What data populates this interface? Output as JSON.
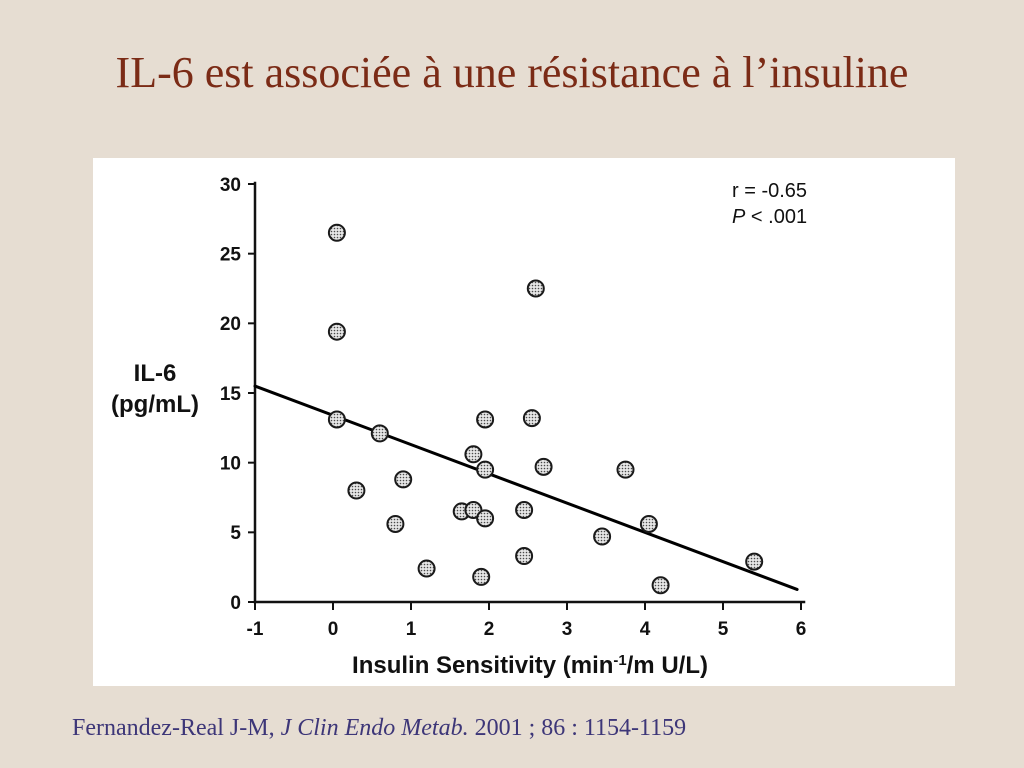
{
  "slide": {
    "title": "IL-6 est associée à une résistance à l’insuline",
    "citation": {
      "authors": "Fernandez-Real J-M,",
      "journal": "J Clin Endo Metab.",
      "details": "2001 ; 86 : 1154-1159"
    },
    "colors": {
      "background": "#e6ddd2",
      "title": "#7b2b16",
      "citation": "#3d3678",
      "panel": "#ffffff"
    }
  },
  "chart_data": {
    "type": "scatter",
    "ylabel": [
      "IL-6",
      "(pg/mL)"
    ],
    "xlabel": {
      "text": "Insulin Sensitivity (min",
      "sup": "-1",
      "tail": "/m U/L)"
    },
    "xlim": [
      -1,
      6
    ],
    "ylim": [
      0,
      30
    ],
    "xticks": [
      -1,
      0,
      1,
      2,
      3,
      4,
      5,
      6
    ],
    "yticks": [
      0,
      5,
      10,
      15,
      20,
      25,
      30
    ],
    "grid": false,
    "annotation": {
      "r": "r = -0.65",
      "p_symbol": "P",
      "p_value": "< .001"
    },
    "x": [
      0.05,
      0.05,
      0.05,
      0.3,
      0.6,
      0.8,
      0.9,
      1.2,
      1.65,
      1.8,
      1.8,
      1.9,
      1.95,
      1.95,
      1.95,
      2.45,
      2.45,
      2.55,
      2.6,
      2.7,
      3.45,
      3.75,
      4.05,
      4.2,
      5.4
    ],
    "y": [
      26.5,
      19.4,
      13.1,
      8.0,
      12.1,
      5.6,
      8.8,
      2.4,
      6.5,
      10.6,
      6.6,
      1.8,
      13.1,
      9.5,
      6.0,
      6.6,
      3.3,
      13.2,
      22.5,
      9.7,
      4.7,
      9.5,
      5.6,
      1.2,
      2.9
    ],
    "fit_line": {
      "x": [
        -1,
        5.95
      ],
      "y": [
        15.5,
        0.9
      ]
    }
  }
}
